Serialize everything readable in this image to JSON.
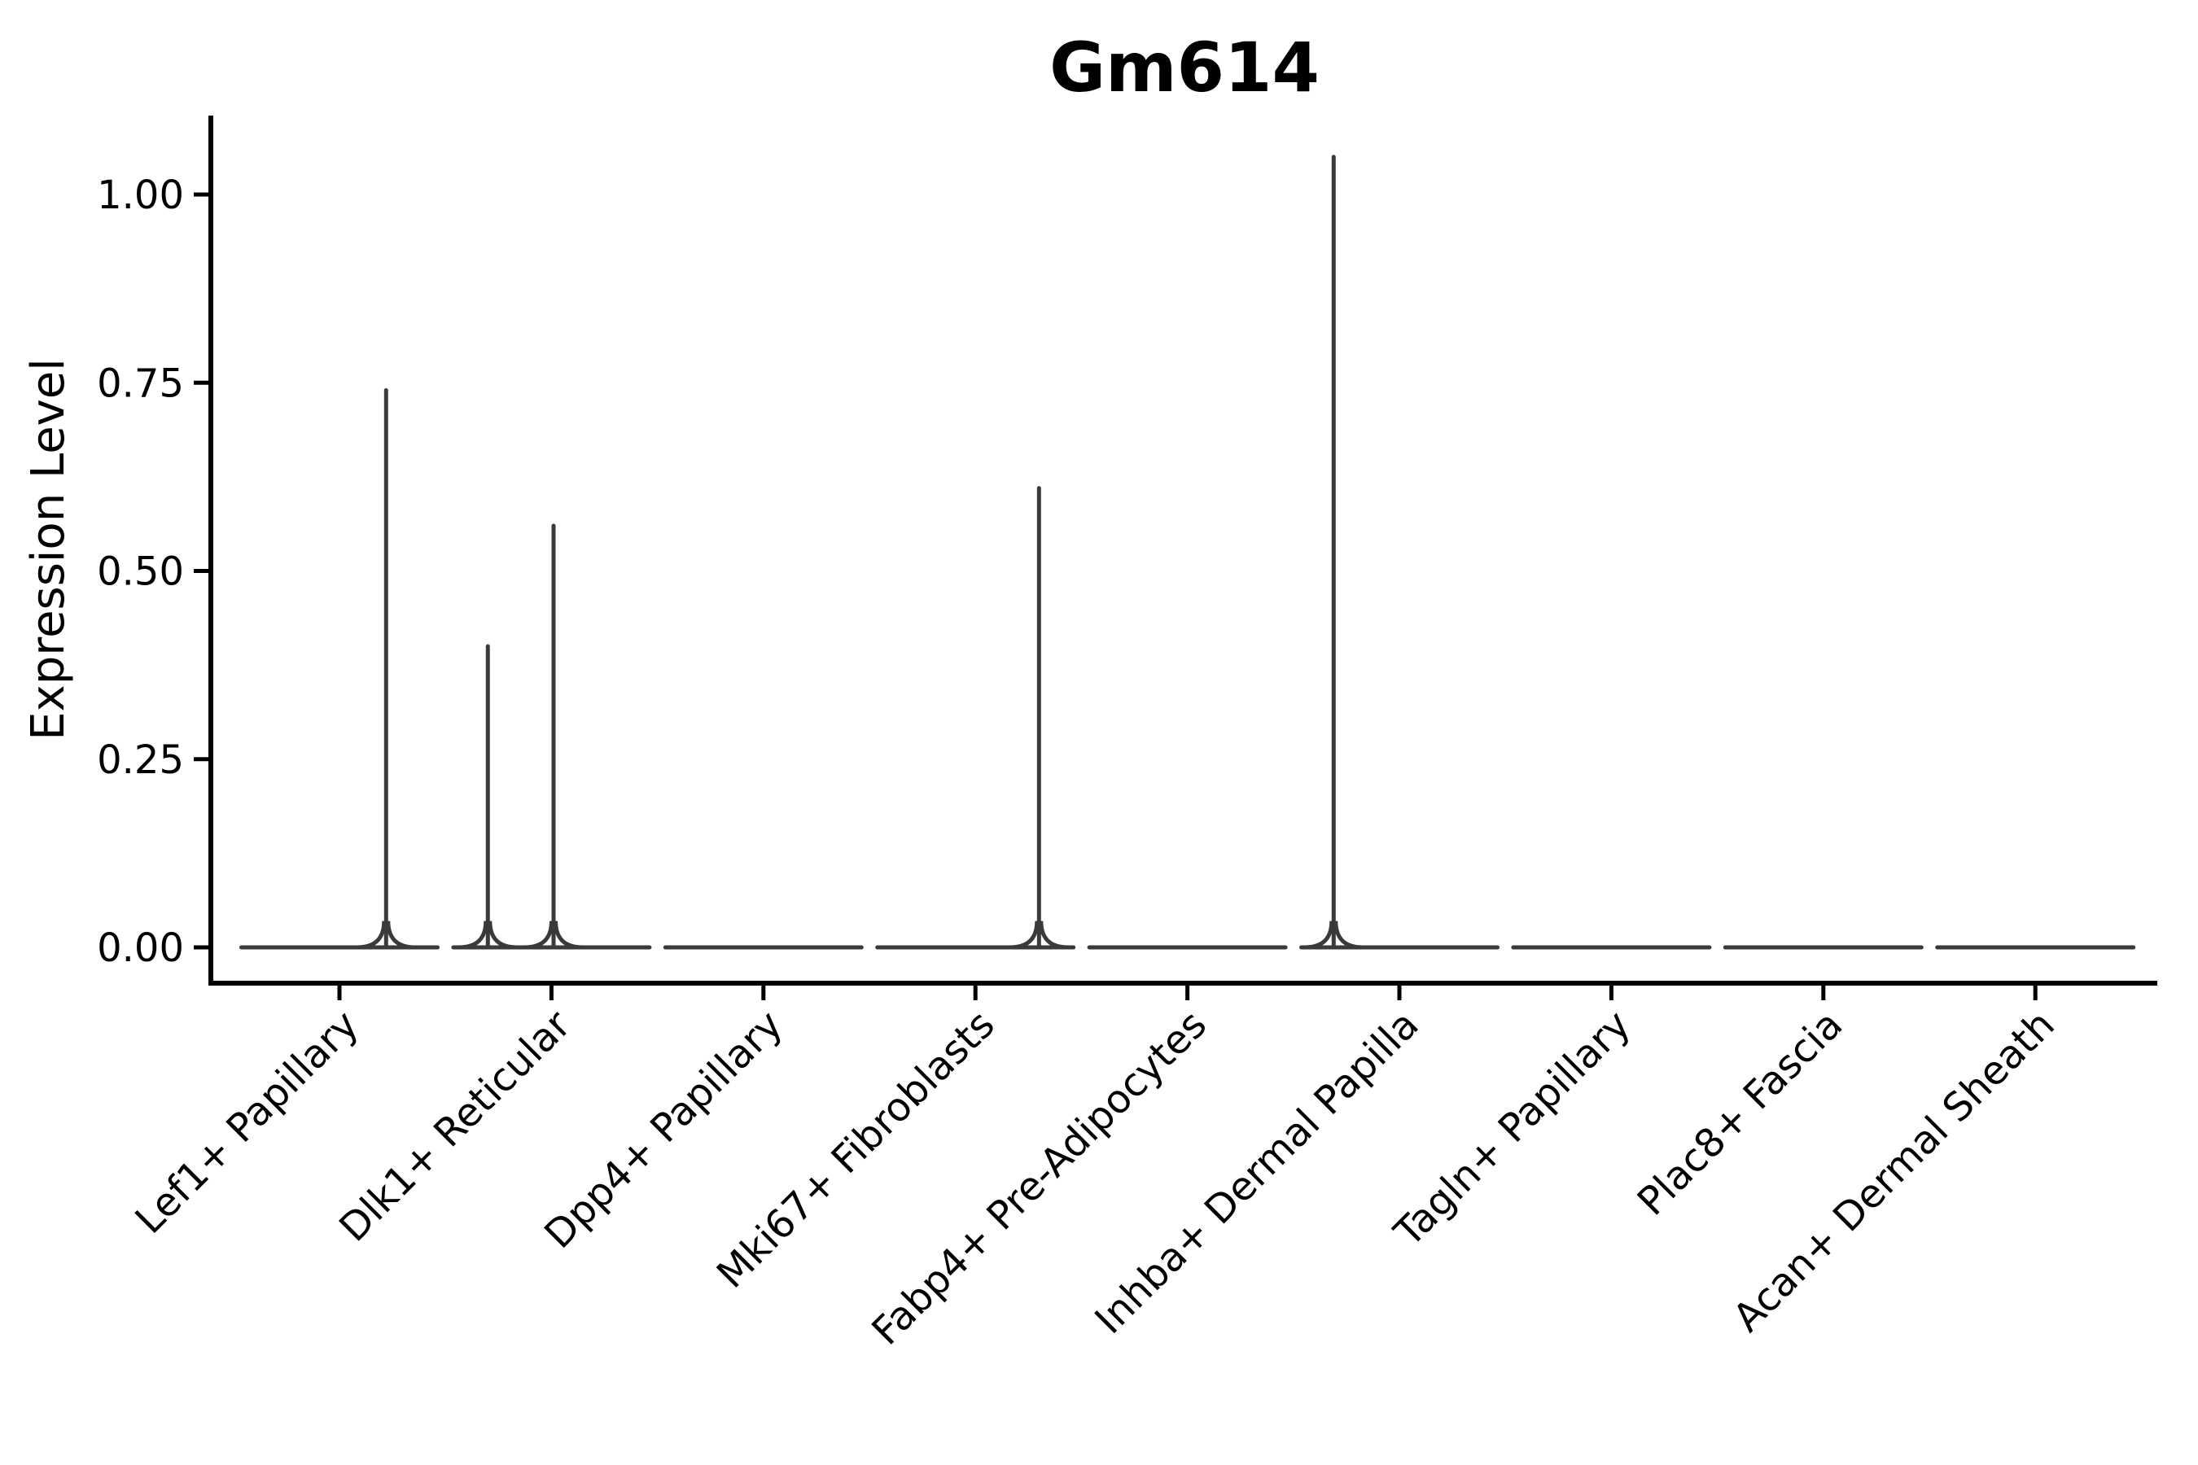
{
  "chart_data": {
    "type": "violin",
    "title": "Gm614",
    "xlabel": "",
    "ylabel": "Expression Level",
    "ylim": [
      0,
      1.1
    ],
    "yticks": [
      0,
      0.25,
      0.5,
      0.75,
      1.0
    ],
    "ytick_labels": [
      "0.00",
      "0.25",
      "0.50",
      "0.75",
      "1.00"
    ],
    "grid": false,
    "legend": "none",
    "categories": [
      "Lef1+ Papillary",
      "Dlk1+ Reticular",
      "Dpp4+ Papillary",
      "Mki67+ Fibroblasts",
      "Fabp4+ Pre-Adipocytes",
      "Inhba+ Dermal Papilla",
      "Tagln+ Papillary",
      "Plac8+ Fascia",
      "Acan+ Dermal Sheath"
    ],
    "violins": [
      {
        "category": "Lef1+ Papillary",
        "baseline_value": 0,
        "spikes": [
          {
            "x_offset": 0.22,
            "max": 0.74
          }
        ]
      },
      {
        "category": "Dlk1+ Reticular",
        "baseline_value": 0,
        "spikes": [
          {
            "x_offset": -0.3,
            "max": 0.4
          },
          {
            "x_offset": 0.01,
            "max": 0.56
          }
        ]
      },
      {
        "category": "Dpp4+ Papillary",
        "baseline_value": 0,
        "spikes": []
      },
      {
        "category": "Mki67+ Fibroblasts",
        "baseline_value": 0,
        "spikes": [
          {
            "x_offset": 0.3,
            "max": 0.61
          }
        ]
      },
      {
        "category": "Fabp4+ Pre-Adipocytes",
        "baseline_value": 0,
        "spikes": []
      },
      {
        "category": "Inhba+ Dermal Papilla",
        "baseline_value": 0,
        "spikes": [
          {
            "x_offset": -0.31,
            "max": 1.05
          }
        ]
      },
      {
        "category": "Tagln+ Papillary",
        "baseline_value": 0,
        "spikes": []
      },
      {
        "category": "Plac8+ Fascia",
        "baseline_value": 0,
        "spikes": []
      },
      {
        "category": "Acan+ Dermal Sheath",
        "baseline_value": 0,
        "spikes": []
      }
    ],
    "colors": {
      "background": "#ffffff",
      "axis": "#000000",
      "text": "#000000",
      "violin_stroke": "#3a3a3a"
    }
  }
}
